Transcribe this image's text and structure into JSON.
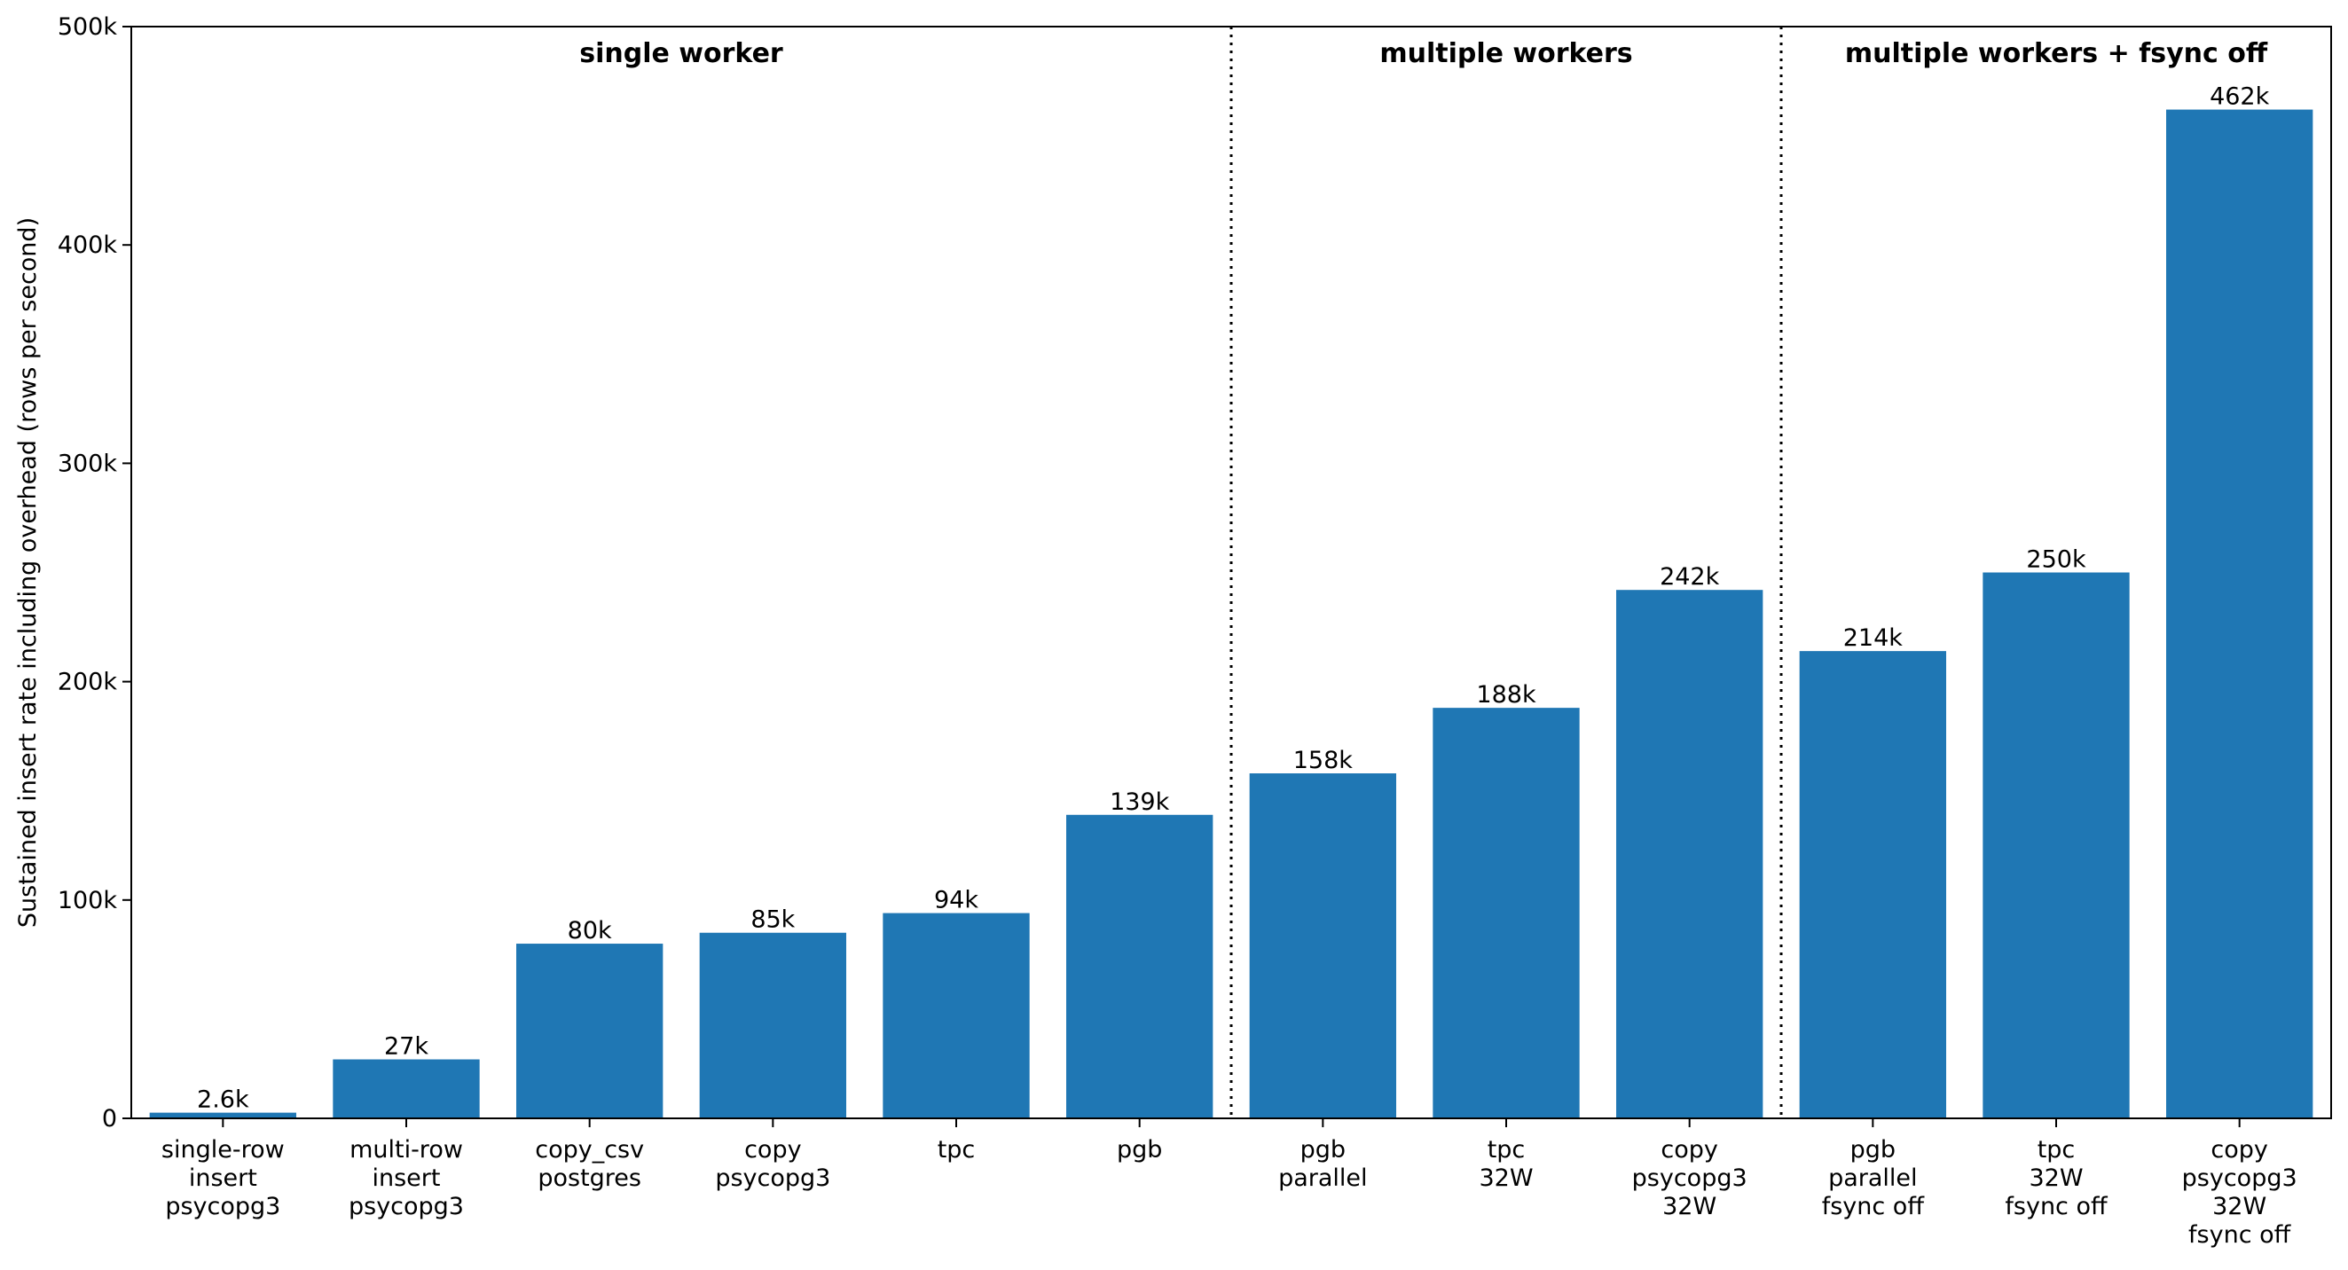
{
  "chart_data": {
    "type": "bar",
    "title": "",
    "xlabel": "",
    "ylabel": "Sustained insert rate including overhead (rows per second)",
    "ylim": [
      0,
      500000
    ],
    "yticks": [
      0,
      100000,
      200000,
      300000,
      400000,
      500000
    ],
    "ytick_labels": [
      "0",
      "100k",
      "200k",
      "300k",
      "400k",
      "500k"
    ],
    "grid": false,
    "legend": "none",
    "bar_color": "#1f77b4",
    "categories": [
      [
        "single-row",
        "insert",
        "psycopg3"
      ],
      [
        "multi-row",
        "insert",
        "psycopg3"
      ],
      [
        "copy_csv",
        "postgres"
      ],
      [
        "copy",
        "psycopg3"
      ],
      [
        "tpc"
      ],
      [
        "pgb"
      ],
      [
        "pgb",
        "parallel"
      ],
      [
        "tpc",
        "32W"
      ],
      [
        "copy",
        "psycopg3",
        "32W"
      ],
      [
        "pgb",
        "parallel",
        "fsync off"
      ],
      [
        "tpc",
        "32W",
        "fsync off"
      ],
      [
        "copy",
        "psycopg3",
        "32W",
        "fsync off"
      ]
    ],
    "values": [
      2600,
      27000,
      80000,
      85000,
      94000,
      139000,
      158000,
      188000,
      242000,
      214000,
      250000,
      462000
    ],
    "value_labels": [
      "2.6k",
      "27k",
      "80k",
      "85k",
      "94k",
      "139k",
      "158k",
      "188k",
      "242k",
      "214k",
      "250k",
      "462k"
    ],
    "groups": [
      {
        "label": "single worker",
        "start": 0,
        "end": 5
      },
      {
        "label": "multiple workers",
        "start": 6,
        "end": 8
      },
      {
        "label": "multiple workers + fsync off",
        "start": 9,
        "end": 11
      }
    ],
    "separators_after": [
      5,
      8
    ]
  }
}
